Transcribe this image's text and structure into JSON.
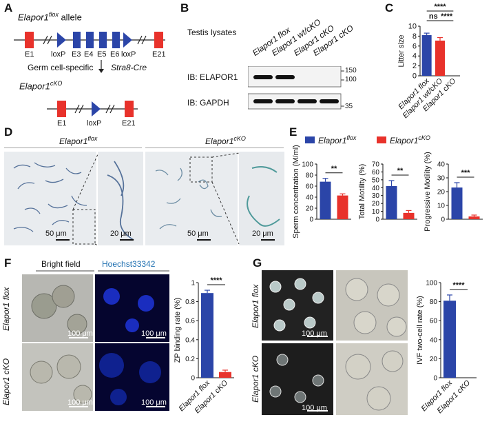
{
  "panels": {
    "A": {
      "letter": "A",
      "allele_title": "Elapor1",
      "allele_sup": "flox",
      "allele_suffix": " allele",
      "exon_labels": [
        "E1",
        "loxP",
        "E3",
        "E4",
        "E5",
        "E6",
        "loxP",
        "E21"
      ],
      "cross_text_1": "Germ cell-specific",
      "cross_text_2": "Stra8-Cre",
      "cko_title": "Elapor1",
      "cko_sup": "cKO",
      "cko_labels": [
        "E1",
        "loxP",
        "E21"
      ],
      "colors": {
        "exon": "#e8322b",
        "floxed_exon": "#2b45a8",
        "loxp": "#2b45a8"
      }
    },
    "B": {
      "letter": "B",
      "title": "Testis lysates",
      "lanes": [
        "Elapor1 flox",
        "Elapor1 wt/cKO",
        "Elapor1 cKO",
        "Elapor1 cKO"
      ],
      "blot1_label": "IB: ELAPOR1",
      "blot2_label": "IB: GAPDH",
      "markers": [
        "150",
        "100",
        "35"
      ]
    },
    "C": {
      "letter": "C"
    },
    "D": {
      "letter": "D",
      "left_title": "Elapor1",
      "left_sup": "flox",
      "right_title": "Elapor1",
      "right_sup": "cKO",
      "scale_a": "50 μm",
      "scale_b": "20 μm",
      "scale_c": "50 μm",
      "scale_d": "20 μm"
    },
    "E": {
      "letter": "E",
      "legend": [
        {
          "name": "Elapor1",
          "sup": "flox",
          "color": "#2b45a8"
        },
        {
          "name": "Elapor1",
          "sup": "cKO",
          "color": "#e8322b"
        }
      ]
    },
    "F": {
      "letter": "F",
      "col1": "Bright field",
      "col2": "Hoechst33342",
      "row1": "Elapor1 flox",
      "row2": "Elapor1 cKO",
      "scales": [
        "100 μm",
        "100 μm",
        "100 μm",
        "100 μm"
      ]
    },
    "G": {
      "letter": "G",
      "row1": "Elapor1 flox",
      "row2": "Elapor1 cKO",
      "scales": [
        "100 μm",
        "100 μm"
      ]
    }
  },
  "chart_data": [
    {
      "id": "C",
      "type": "bar",
      "categories": [
        "Elapor1 flox",
        "Elapor1 wt/cKO",
        "Elapor1 cKO"
      ],
      "values": [
        8.2,
        7.1,
        0
      ],
      "errors": [
        0.4,
        0.6,
        0
      ],
      "ylabel": "Litter size",
      "ylim": [
        0,
        10
      ],
      "yticks": [
        0,
        2,
        4,
        6,
        8,
        10
      ],
      "colors": [
        "#2b45a8",
        "#e8322b",
        "#e8322b"
      ],
      "annotations": [
        {
          "from": 0,
          "to": 2,
          "text": "****"
        },
        {
          "from": 0,
          "to": 1,
          "text": "ns"
        },
        {
          "from": 1,
          "to": 2,
          "text": "****"
        }
      ]
    },
    {
      "id": "E1",
      "type": "bar",
      "categories": [
        "Elapor1 flox",
        "Elapor1 cKO"
      ],
      "values": [
        68,
        43
      ],
      "errors": [
        6,
        3
      ],
      "ylabel": "Sperm concentration  (M/ml)",
      "ylim": [
        0,
        100
      ],
      "yticks": [
        0,
        20,
        40,
        60,
        80,
        100
      ],
      "colors": [
        "#2b45a8",
        "#e8322b"
      ],
      "annotations": [
        {
          "from": 0,
          "to": 1,
          "text": "**"
        }
      ]
    },
    {
      "id": "E2",
      "type": "bar",
      "categories": [
        "Elapor1 flox",
        "Elapor1 cKO"
      ],
      "values": [
        42,
        8
      ],
      "errors": [
        7,
        3
      ],
      "ylabel": "Total Motility (%)",
      "ylim": [
        0,
        70
      ],
      "yticks": [
        0,
        10,
        20,
        30,
        40,
        50,
        60,
        70
      ],
      "colors": [
        "#2b45a8",
        "#e8322b"
      ],
      "annotations": [
        {
          "from": 0,
          "to": 1,
          "text": "**"
        }
      ]
    },
    {
      "id": "E3",
      "type": "bar",
      "categories": [
        "Elapor1 flox",
        "Elapor1 cKO"
      ],
      "values": [
        23,
        2
      ],
      "errors": [
        3.5,
        1
      ],
      "ylabel": "Progressive Motility (%)",
      "ylim": [
        0,
        40
      ],
      "yticks": [
        0,
        10,
        20,
        30,
        40
      ],
      "colors": [
        "#2b45a8",
        "#e8322b"
      ],
      "annotations": [
        {
          "from": 0,
          "to": 1,
          "text": "***"
        }
      ]
    },
    {
      "id": "F",
      "type": "bar",
      "categories": [
        "Elapor1 flox",
        "Elapor1 cKO"
      ],
      "values": [
        0.89,
        0.06
      ],
      "errors": [
        0.03,
        0.02
      ],
      "ylabel": "ZP binding rate (%)",
      "ylim": [
        0,
        1.0
      ],
      "yticks": [
        0.0,
        0.2,
        0.4,
        0.6,
        0.8,
        1.0
      ],
      "colors": [
        "#2b45a8",
        "#e8322b"
      ],
      "annotations": [
        {
          "from": 0,
          "to": 1,
          "text": "****"
        }
      ]
    },
    {
      "id": "G",
      "type": "bar",
      "categories": [
        "Elapor1 flox",
        "Elapor1 cKO"
      ],
      "values": [
        81,
        0
      ],
      "errors": [
        6,
        0
      ],
      "ylabel": "IVF two-cell rate (%)",
      "ylim": [
        0,
        100
      ],
      "yticks": [
        0,
        20,
        40,
        60,
        80,
        100
      ],
      "colors": [
        "#2b45a8",
        "#e8322b"
      ],
      "annotations": [
        {
          "from": 0,
          "to": 1,
          "text": "****"
        }
      ]
    }
  ]
}
